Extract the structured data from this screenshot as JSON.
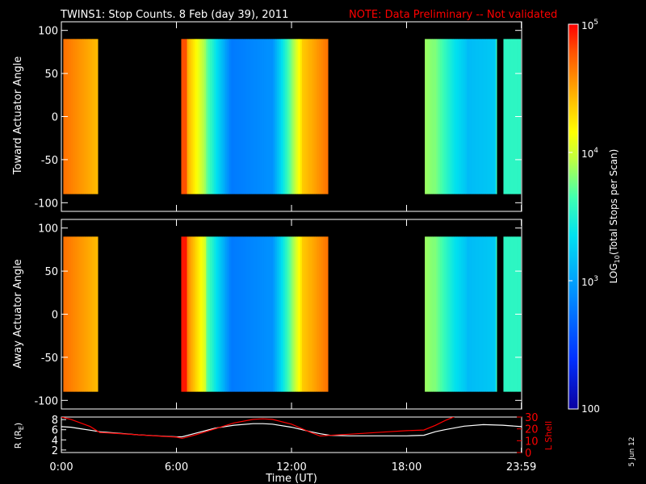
{
  "title": "TWINS1: Stop Counts.  8 Feb (day  39), 2011",
  "note": "NOTE: Data Preliminary -- Not validated",
  "stamp": "5 Jun 12",
  "colors": {
    "background": "#000000",
    "note": "#ff0000",
    "lshell": "#ff0000",
    "radius": "#ffffff",
    "frame": "#ffffff"
  },
  "chart_data": [
    {
      "type": "heatmap",
      "panel": "toward",
      "ylabel": "Toward Actuator Angle",
      "ylim": [
        -110,
        110
      ],
      "yticks": [
        -100,
        -50,
        0,
        50,
        100
      ],
      "x_range_hours": [
        0,
        24
      ],
      "bins_angle": [
        -90,
        90
      ],
      "data_segments_hours": [
        [
          0.1,
          1.9
        ],
        [
          6.25,
          13.9
        ],
        [
          18.95,
          22.7
        ],
        [
          23.05,
          23.95
        ]
      ],
      "color_scale": "log",
      "value_range": [
        100,
        100000
      ]
    },
    {
      "type": "heatmap",
      "panel": "away",
      "ylabel": "Away Actuator Angle",
      "ylim": [
        -110,
        110
      ],
      "yticks": [
        -100,
        -50,
        0,
        50,
        100
      ],
      "x_range_hours": [
        0,
        24
      ],
      "bins_angle": [
        -90,
        90
      ],
      "data_segments_hours": [
        [
          0.1,
          1.9
        ],
        [
          6.25,
          13.9
        ],
        [
          18.95,
          22.7
        ],
        [
          23.05,
          23.95
        ]
      ],
      "color_scale": "log",
      "value_range": [
        100,
        100000
      ]
    },
    {
      "type": "line",
      "panel": "orbit",
      "xlabel": "Time (UT)",
      "xticks": [
        "0:00",
        "6:00",
        "12:00",
        "18:00",
        "23:59"
      ],
      "xtick_hours": [
        0,
        6,
        12,
        18,
        23.983
      ],
      "ylabel_left": "R (R",
      "ylabel_left_sub": "E",
      "ylabel_left_end": ")",
      "ylabel_right": "L Shell",
      "ylim_left": [
        1.5,
        8.5
      ],
      "yticks_left": [
        2,
        4,
        6,
        8
      ],
      "ylim_right": [
        0,
        30
      ],
      "yticks_right": [
        0,
        10,
        20,
        30
      ],
      "series": [
        {
          "name": "R",
          "axis": "left",
          "hours": [
            0,
            0.5,
            1,
            1.5,
            2,
            3,
            4,
            5,
            6,
            6.3,
            7,
            8,
            9,
            10,
            10.5,
            11,
            12,
            13,
            13.5,
            14,
            15,
            16,
            17,
            18,
            18.9,
            19.5,
            20,
            21,
            22,
            23,
            24
          ],
          "values": [
            6.6,
            6.5,
            6.2,
            5.9,
            5.6,
            5.3,
            5.0,
            4.8,
            4.6,
            4.6,
            5.3,
            6.3,
            6.9,
            7.2,
            7.2,
            7.1,
            6.5,
            5.6,
            5.2,
            4.9,
            4.8,
            4.8,
            4.8,
            4.8,
            4.9,
            5.6,
            6.0,
            6.7,
            7.0,
            6.9,
            6.6
          ]
        },
        {
          "name": "L Shell",
          "axis": "right",
          "hours": [
            0,
            0.5,
            1,
            1.5,
            2,
            3,
            4,
            5,
            6,
            6.3,
            7,
            8,
            9,
            10,
            10.5,
            11,
            12,
            13,
            13.5,
            14,
            15,
            16,
            17,
            18,
            18.9,
            19.5,
            20,
            20.6
          ],
          "values": [
            30,
            28,
            25,
            22,
            17,
            16,
            15,
            14,
            13,
            12,
            15,
            20,
            25,
            28,
            28.5,
            28,
            24,
            17,
            14,
            14.5,
            15.5,
            16.5,
            17.5,
            18.5,
            19,
            23,
            27,
            31
          ]
        }
      ]
    }
  ],
  "colorbar": {
    "label": "LOG",
    "label_sub": "10",
    "label_end": "(Total Stops per Scan)",
    "ticks": [
      {
        "value": 100000,
        "base": "10",
        "exp": "5"
      },
      {
        "value": 10000,
        "base": "10",
        "exp": "4"
      },
      {
        "value": 1000,
        "base": "10",
        "exp": "3"
      },
      {
        "value": 100,
        "base": "100",
        "exp": ""
      }
    ],
    "range": [
      100,
      100000
    ]
  }
}
